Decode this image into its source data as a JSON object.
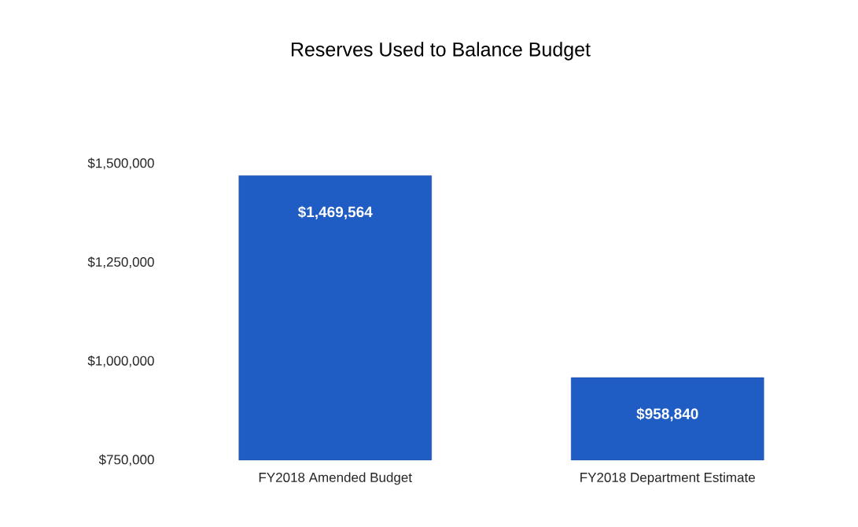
{
  "chart_data": {
    "type": "bar",
    "title": "Reserves Used to Balance Budget",
    "categories": [
      "FY2018 Amended Budget",
      "FY2018 Department Estimate"
    ],
    "values": [
      1469564,
      958840
    ],
    "value_labels": [
      "$1,469,564",
      "$958,840"
    ],
    "color": "#1f5cc4",
    "ylim": [
      750000,
      1500000
    ],
    "yticks": [
      {
        "value": 750000,
        "label": "$750,000"
      },
      {
        "value": 1000000,
        "label": "$1,000,000"
      },
      {
        "value": 1250000,
        "label": "$1,250,000"
      },
      {
        "value": 1500000,
        "label": "$1,500,000"
      }
    ]
  }
}
